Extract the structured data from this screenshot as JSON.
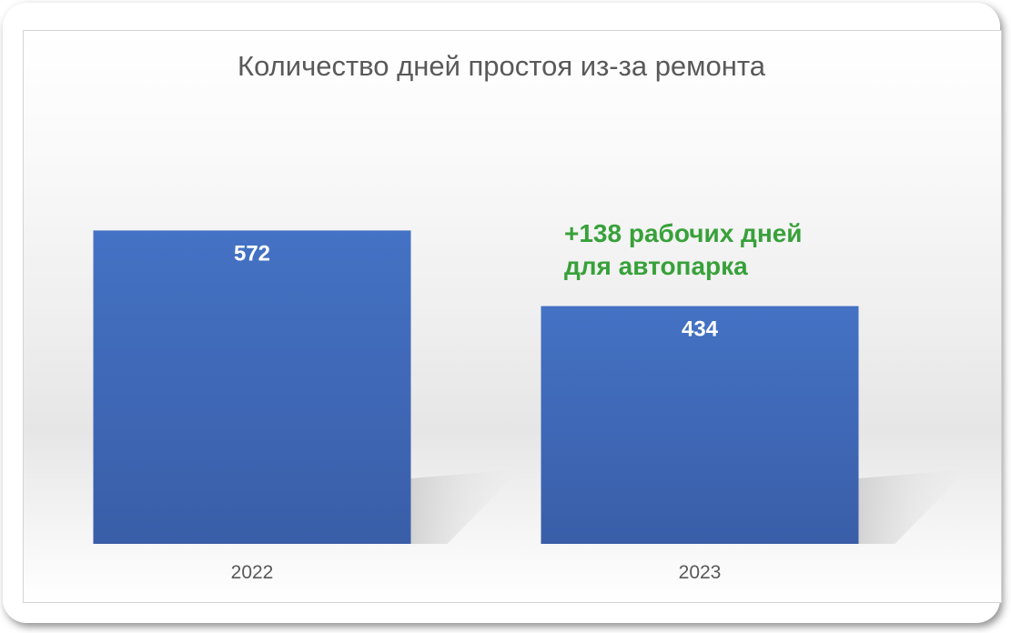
{
  "chart_data": {
    "type": "bar",
    "title": "Количество дней простоя из-за ремонта",
    "categories": [
      "2022",
      "2023"
    ],
    "values": [
      572,
      434
    ],
    "data_labels": [
      "572",
      "434"
    ],
    "ylim": [
      0,
      830
    ],
    "grid": false,
    "legend": "none",
    "annotation": {
      "line1": "+138 рабочих дней",
      "line2": "для автопарка"
    },
    "colors": {
      "bar_top": "#4472c4",
      "bar_bottom": "#3a5ea8",
      "label": "#ffffff",
      "annotation": "#38a13a",
      "title": "#595959",
      "axis_text": "#595959"
    }
  }
}
